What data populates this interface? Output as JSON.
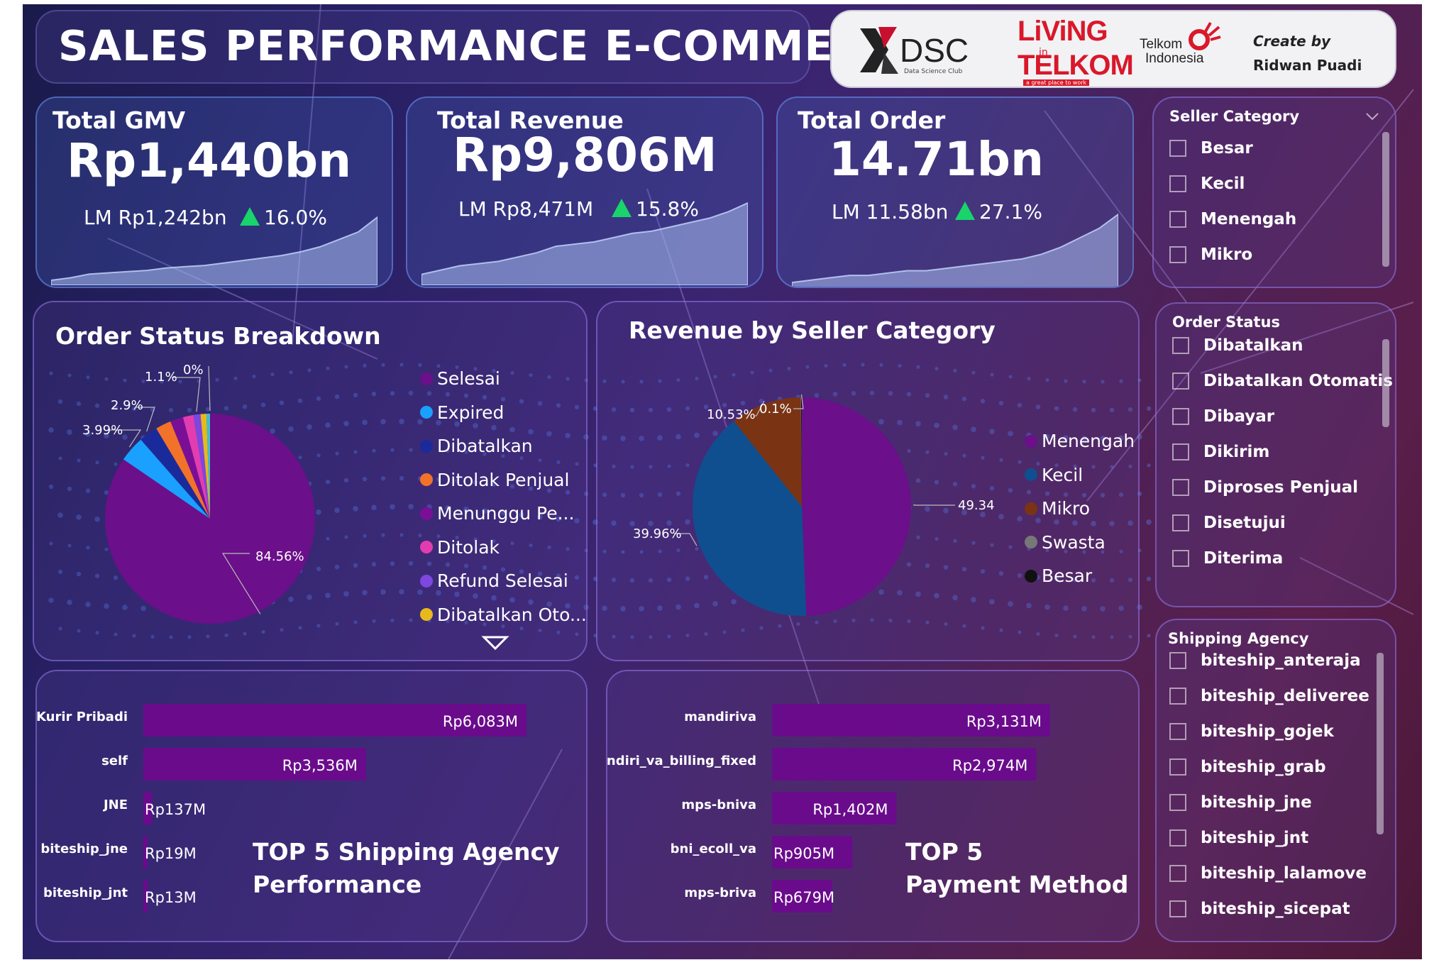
{
  "header": {
    "title": "SALES PERFORMANCE E-COMMERCE",
    "logos": {
      "dsc": "DSC",
      "dsc_sub": "Data Science Club",
      "living_line1": "LiViNG",
      "living_in": "in",
      "living_line2": "TELKOM",
      "living_sub": "a great place to work",
      "telkom_line1": "Telkom",
      "telkom_line2": "Indonesia"
    },
    "credit_label": "Create by",
    "credit_name": "Ridwan Puadi"
  },
  "kpis": [
    {
      "label": "Total GMV",
      "value": "Rp1,440bn",
      "lm": "LM Rp1,242bn",
      "change": "16.0%",
      "trend": [
        4,
        6,
        9,
        10,
        11,
        12,
        14,
        15,
        16,
        18,
        20,
        22,
        24,
        27,
        31,
        37,
        43,
        55
      ]
    },
    {
      "label": "Total Revenue",
      "value": "Rp9,806M",
      "lm": "LM Rp8,471M",
      "change": "15.8%",
      "trend": [
        5,
        7,
        9,
        10,
        11,
        13,
        15,
        18,
        19,
        20,
        22,
        24,
        25,
        27,
        29,
        31,
        34,
        38
      ]
    },
    {
      "label": "Total Order",
      "value": "14.71bn",
      "lm": "LM 11.58bn",
      "change": "27.1%",
      "trend": [
        3,
        4,
        5,
        6,
        6,
        7,
        8,
        8,
        9,
        10,
        11,
        12,
        13,
        15,
        18,
        22,
        26,
        32
      ]
    }
  ],
  "colors": {
    "purple": "#6b0f8a",
    "blue": "#0f4f8f",
    "brown": "#7a3414",
    "bar": "#6a0b8c",
    "up": "#19d36b"
  },
  "slicers": [
    {
      "title": "Seller Category",
      "items": [
        "Besar",
        "Kecil",
        "Menengah",
        "Mikro"
      ]
    },
    {
      "title": "Order Status",
      "items": [
        "Dibatalkan",
        "Dibatalkan Otomatis",
        "Dibayar",
        "Dikirim",
        "Diproses Penjual",
        "Disetujui",
        "Diterima"
      ]
    },
    {
      "title": "Shipping Agency",
      "items": [
        "biteship_anteraja",
        "biteship_deliveree",
        "biteship_gojek",
        "biteship_grab",
        "biteship_jne",
        "biteship_jnt",
        "biteship_lalamove",
        "biteship_sicepat"
      ]
    }
  ],
  "chart_data": [
    {
      "type": "pie",
      "title": "Order Status Breakdown",
      "slices": [
        {
          "label": "Selesai",
          "value": 84.56,
          "color": "#6b0f8a",
          "shown": "84.56%"
        },
        {
          "label": "Expired",
          "value": 3.99,
          "color": "#1aa0ff",
          "shown": "3.99%"
        },
        {
          "label": "Dibatalkan",
          "value": 2.9,
          "color": "#1b2a9a",
          "shown": "2.9%"
        },
        {
          "label": "Ditolak Penjual",
          "value": 2.4,
          "color": "#f2722a",
          "shown": ""
        },
        {
          "label": "Menunggu Pe...",
          "value": 2.0,
          "color": "#7a0f96",
          "shown": ""
        },
        {
          "label": "Ditolak",
          "value": 1.6,
          "color": "#e23db0",
          "shown": ""
        },
        {
          "label": "Refund Selesai",
          "value": 1.1,
          "color": "#7d47e0",
          "shown": "1.1%"
        },
        {
          "label": "Dibatalkan Oto...",
          "value": 0.9,
          "color": "#e8b91c",
          "shown": ""
        },
        {
          "label": "",
          "value": 0.55,
          "color": "#3fc1c9",
          "shown": ""
        },
        {
          "label": "",
          "value": 0.0,
          "color": "#888888",
          "shown": "0%"
        }
      ],
      "legend": [
        "Selesai",
        "Expired",
        "Dibatalkan",
        "Ditolak Penjual",
        "Menunggu Pe...",
        "Ditolak",
        "Refund Selesai",
        "Dibatalkan Oto..."
      ],
      "legend_placement": "right"
    },
    {
      "type": "pie",
      "title": "Revenue by Seller Category",
      "slices": [
        {
          "label": "Menengah",
          "value": 49.34,
          "color": "#6b0f8a",
          "shown": "49.34%"
        },
        {
          "label": "Kecil",
          "value": 39.96,
          "color": "#0f4f8f",
          "shown": "39.96%"
        },
        {
          "label": "Mikro",
          "value": 10.53,
          "color": "#7a3414",
          "shown": "10.53%"
        },
        {
          "label": "Swasta",
          "value": 0.07,
          "color": "#777777",
          "shown": ""
        },
        {
          "label": "Besar",
          "value": 0.1,
          "color": "#111111",
          "shown": "0.1%"
        }
      ],
      "legend": [
        "Menengah",
        "Kecil",
        "Mikro",
        "Swasta",
        "Besar"
      ],
      "legend_placement": "right"
    },
    {
      "type": "bar",
      "orientation": "horizontal",
      "title": "TOP 5 Shipping Agency Performance",
      "categories": [
        "Kurir Pribadi",
        "self",
        "JNE",
        "biteship_jne",
        "biteship_jnt"
      ],
      "values": [
        6083,
        3536,
        137,
        19,
        13
      ],
      "value_labels": [
        "Rp6,083M",
        "Rp3,536M",
        "Rp137M",
        "Rp19M",
        "Rp13M"
      ],
      "unit": "M"
    },
    {
      "type": "bar",
      "orientation": "horizontal",
      "title": "TOP 5 Payment Method",
      "categories": [
        "mandiriva",
        "mandiri_va_billing_fixed",
        "mps-bniva",
        "bni_ecoll_va",
        "mps-briva"
      ],
      "values": [
        3131,
        2974,
        1402,
        905,
        679
      ],
      "value_labels": [
        "Rp3,131M",
        "Rp2,974M",
        "Rp1,402M",
        "Rp905M",
        "Rp679M"
      ],
      "unit": "M"
    }
  ],
  "titles": {
    "order_status": "Order Status Breakdown",
    "revenue_seller": "Revenue by Seller Category",
    "shipping_l1": "TOP 5 Shipping Agency",
    "shipping_l2": "Performance",
    "payment_l1": "TOP 5",
    "payment_l2": "Payment Method"
  }
}
